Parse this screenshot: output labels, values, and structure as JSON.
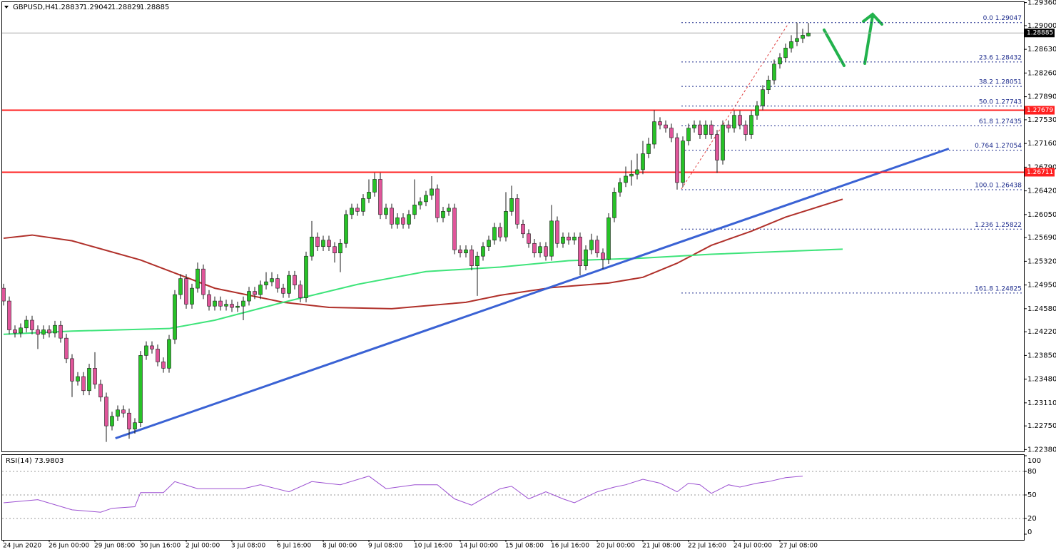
{
  "header": {
    "symbol": "GBPUSD,H4",
    "open": 1.28837,
    "high": 1.29042,
    "low": 1.28829,
    "close": 1.28885
  },
  "chart_data": [
    {
      "type": "candlestick",
      "categories": [
        "24 Jun 2020",
        null,
        null,
        null,
        null,
        null,
        null,
        null,
        "26 Jun 00:00",
        null,
        null,
        null,
        null,
        null,
        null,
        null,
        "29 Jun 08:00",
        null,
        null,
        null,
        null,
        null,
        null,
        null,
        "30 Jun 16:00",
        null,
        null,
        null,
        null,
        null,
        null,
        null,
        "2 Jul 00:00",
        null,
        null,
        null,
        null,
        null,
        null,
        null,
        "3 Jul 08:00",
        null,
        null,
        null,
        null,
        null,
        null,
        null,
        "6 Jul 16:00",
        null,
        null,
        null,
        null,
        null,
        null,
        null,
        "8 Jul 00:00",
        null,
        null,
        null,
        null,
        null,
        null,
        null,
        "9 Jul 08:00",
        null,
        null,
        null,
        null,
        null,
        null,
        null,
        "10 Jul 16:00",
        null,
        null,
        null,
        null,
        null,
        null,
        null,
        "14 Jul 00:00",
        null,
        null,
        null,
        null,
        null,
        null,
        null,
        "15 Jul 08:00",
        null,
        null,
        null,
        null,
        null,
        null,
        null,
        "16 Jul 16:00",
        null,
        null,
        null,
        null,
        null,
        null,
        null,
        "20 Jul 00:00",
        null,
        null,
        null,
        null,
        null,
        null,
        null,
        "21 Jul 08:00",
        null,
        null,
        null,
        null,
        null,
        null,
        null,
        "22 Jul 16:00",
        null,
        null,
        null,
        null,
        null,
        null,
        null,
        "24 Jul 00:00",
        null,
        null,
        null,
        null,
        null,
        null,
        null,
        "27 Jul 08:00",
        null,
        null,
        null,
        null,
        null
      ],
      "open": [
        1.249,
        1.247,
        1.2425,
        1.242,
        1.2428,
        1.244,
        1.2425,
        1.2418,
        1.2425,
        1.242,
        1.2432,
        1.2412,
        1.238,
        1.2345,
        1.2352,
        1.233,
        1.2365,
        1.234,
        1.232,
        1.2275,
        1.229,
        1.23,
        1.2295,
        1.227,
        1.228,
        1.2385,
        1.24,
        1.2395,
        1.2375,
        1.2365,
        1.241,
        1.248,
        1.2505,
        1.2465,
        1.249,
        1.252,
        1.248,
        1.2462,
        1.247,
        1.2462,
        1.2465,
        1.246,
        1.2462,
        1.247,
        1.2485,
        1.248,
        1.2495,
        1.25,
        1.2505,
        1.249,
        1.2482,
        1.251,
        1.2495,
        1.2475,
        1.254,
        1.257,
        1.2555,
        1.2565,
        1.2555,
        1.2545,
        1.256,
        1.2605,
        1.2615,
        1.261,
        1.263,
        1.264,
        1.266,
        1.2605,
        1.2615,
        1.259,
        1.26,
        1.259,
        1.2605,
        1.262,
        1.2625,
        1.2635,
        1.2645,
        1.26,
        1.261,
        1.2615,
        1.255,
        1.2545,
        1.255,
        1.2525,
        1.254,
        1.2555,
        1.2565,
        1.2585,
        1.257,
        1.261,
        1.263,
        1.259,
        1.2575,
        1.256,
        1.2545,
        1.2555,
        1.254,
        1.2595,
        1.256,
        1.257,
        1.2565,
        1.257,
        1.2525,
        1.255,
        1.2565,
        1.2545,
        1.2535,
        1.26,
        1.264,
        1.2655,
        1.2665,
        1.2668,
        1.2675,
        1.27,
        1.2715,
        1.275,
        1.2745,
        1.274,
        1.2725,
        1.2655,
        1.272,
        1.274,
        1.2745,
        1.273,
        1.2745,
        1.273,
        1.269,
        1.2745,
        1.274,
        1.276,
        1.2745,
        1.273,
        1.276,
        1.2775,
        1.28,
        1.2815,
        1.284,
        1.285,
        1.2865,
        1.2875,
        1.288,
        1.28837
      ],
      "high": [
        1.2497,
        1.2477,
        1.2432,
        1.2435,
        1.2447,
        1.2447,
        1.2432,
        1.2432,
        1.2432,
        1.2439,
        1.2439,
        1.2419,
        1.2387,
        1.2359,
        1.2359,
        1.2372,
        1.239,
        1.2347,
        1.2327,
        1.2297,
        1.2307,
        1.2307,
        1.2302,
        1.2287,
        1.2392,
        1.2407,
        1.2407,
        1.2402,
        1.2382,
        1.2417,
        1.2487,
        1.2512,
        1.2512,
        1.2497,
        1.253,
        1.2527,
        1.2487,
        1.2477,
        1.2477,
        1.2472,
        1.2472,
        1.2469,
        1.2477,
        1.2492,
        1.2492,
        1.2502,
        1.2515,
        1.2515,
        1.2512,
        1.2497,
        1.2517,
        1.2517,
        1.2502,
        1.2547,
        1.2595,
        1.2577,
        1.2572,
        1.2572,
        1.2562,
        1.2567,
        1.2612,
        1.2622,
        1.2622,
        1.2637,
        1.266,
        1.267,
        1.267,
        1.2622,
        1.2622,
        1.2607,
        1.2607,
        1.2612,
        1.266,
        1.2632,
        1.2642,
        1.2665,
        1.2652,
        1.2617,
        1.2622,
        1.2622,
        1.2557,
        1.2557,
        1.2557,
        1.2547,
        1.2562,
        1.2572,
        1.2592,
        1.2592,
        1.264,
        1.265,
        1.2637,
        1.2597,
        1.2582,
        1.2567,
        1.2562,
        1.2562,
        1.262,
        1.2602,
        1.2577,
        1.2577,
        1.2577,
        1.2577,
        1.2557,
        1.2575,
        1.2572,
        1.2552,
        1.2607,
        1.2647,
        1.2662,
        1.268,
        1.269,
        1.27,
        1.272,
        1.2725,
        1.2768,
        1.2757,
        1.2752,
        1.2747,
        1.2732,
        1.2727,
        1.2747,
        1.2752,
        1.2752,
        1.2752,
        1.2752,
        1.2737,
        1.2752,
        1.2752,
        1.2767,
        1.2767,
        1.2752,
        1.2767,
        1.2782,
        1.2807,
        1.2822,
        1.2847,
        1.2857,
        1.2872,
        1.2885,
        1.29047,
        1.2895,
        1.29042
      ],
      "low": [
        1.2463,
        1.2418,
        1.2413,
        1.2413,
        1.2421,
        1.2418,
        1.2395,
        1.2411,
        1.2413,
        1.2413,
        1.2405,
        1.2373,
        1.232,
        1.2338,
        1.2323,
        1.2323,
        1.2333,
        1.2313,
        1.225,
        1.2268,
        1.2283,
        1.2288,
        1.2255,
        1.2263,
        1.2273,
        1.2378,
        1.2388,
        1.2368,
        1.2358,
        1.2358,
        1.2403,
        1.2473,
        1.2458,
        1.2458,
        1.2483,
        1.2473,
        1.2455,
        1.2455,
        1.2455,
        1.2455,
        1.2453,
        1.2453,
        1.244,
        1.2463,
        1.2473,
        1.2473,
        1.2488,
        1.2493,
        1.2483,
        1.2475,
        1.2475,
        1.2488,
        1.2468,
        1.2468,
        1.2533,
        1.2548,
        1.2548,
        1.2548,
        1.253,
        1.2515,
        1.2553,
        1.2598,
        1.2603,
        1.2603,
        1.2623,
        1.2633,
        1.2598,
        1.2598,
        1.2583,
        1.2583,
        1.2583,
        1.2583,
        1.2598,
        1.2613,
        1.2618,
        1.2628,
        1.2593,
        1.2593,
        1.2603,
        1.2543,
        1.2538,
        1.2538,
        1.2518,
        1.2478,
        1.2533,
        1.2548,
        1.2558,
        1.2563,
        1.2563,
        1.2603,
        1.2583,
        1.2568,
        1.2553,
        1.2538,
        1.2538,
        1.2533,
        1.2533,
        1.2553,
        1.2553,
        1.2558,
        1.2558,
        1.251,
        1.2518,
        1.2543,
        1.2538,
        1.252,
        1.2528,
        1.2593,
        1.2633,
        1.2648,
        1.265,
        1.266,
        1.2668,
        1.2693,
        1.2708,
        1.2738,
        1.2733,
        1.2718,
        1.2644,
        1.2648,
        1.2713,
        1.2733,
        1.2723,
        1.2723,
        1.2723,
        1.267,
        1.2683,
        1.2733,
        1.2733,
        1.2738,
        1.272,
        1.2723,
        1.2753,
        1.2768,
        1.2793,
        1.2808,
        1.2833,
        1.2843,
        1.2858,
        1.2868,
        1.2873,
        1.28829
      ],
      "close": [
        1.247,
        1.2425,
        1.242,
        1.2428,
        1.244,
        1.2425,
        1.2418,
        1.2425,
        1.242,
        1.2432,
        1.2412,
        1.238,
        1.2345,
        1.2352,
        1.233,
        1.2365,
        1.234,
        1.232,
        1.2275,
        1.229,
        1.23,
        1.2295,
        1.227,
        1.228,
        1.2385,
        1.24,
        1.2395,
        1.2375,
        1.2365,
        1.241,
        1.248,
        1.2505,
        1.2465,
        1.249,
        1.252,
        1.248,
        1.2462,
        1.247,
        1.2462,
        1.2465,
        1.246,
        1.2462,
        1.247,
        1.2485,
        1.248,
        1.2495,
        1.25,
        1.2505,
        1.249,
        1.2482,
        1.251,
        1.2495,
        1.2475,
        1.254,
        1.257,
        1.2555,
        1.2565,
        1.2555,
        1.2545,
        1.256,
        1.2605,
        1.2615,
        1.261,
        1.263,
        1.264,
        1.266,
        1.2605,
        1.2615,
        1.259,
        1.26,
        1.259,
        1.2605,
        1.262,
        1.2625,
        1.2635,
        1.2645,
        1.26,
        1.261,
        1.2615,
        1.255,
        1.2545,
        1.255,
        1.2525,
        1.254,
        1.2555,
        1.2565,
        1.2585,
        1.257,
        1.261,
        1.263,
        1.259,
        1.2575,
        1.256,
        1.2545,
        1.2555,
        1.254,
        1.2595,
        1.256,
        1.257,
        1.2565,
        1.257,
        1.2525,
        1.255,
        1.2565,
        1.2545,
        1.2535,
        1.26,
        1.264,
        1.2655,
        1.2665,
        1.2668,
        1.2675,
        1.27,
        1.2715,
        1.275,
        1.2745,
        1.274,
        1.2725,
        1.2655,
        1.272,
        1.274,
        1.2745,
        1.273,
        1.2745,
        1.273,
        1.269,
        1.2745,
        1.274,
        1.276,
        1.2745,
        1.273,
        1.276,
        1.2775,
        1.28,
        1.2815,
        1.284,
        1.285,
        1.2865,
        1.2875,
        1.288,
        1.2885,
        1.28885
      ],
      "up_color": "#27c227",
      "down_color": "#e0559a",
      "wick_color": "#1a1a1a",
      "ylim": [
        1.2234,
        1.294
      ],
      "yticks": [
        {
          "value": 1.2936,
          "label": "1.29360"
        },
        {
          "value": 1.29,
          "label": "1.29000"
        },
        {
          "value": 1.2863,
          "label": "1.28630"
        },
        {
          "value": 1.2826,
          "label": "1.28260"
        },
        {
          "value": 1.2789,
          "label": "1.27890"
        },
        {
          "value": 1.2753,
          "label": "1.27530"
        },
        {
          "value": 1.2716,
          "label": "1.27160"
        },
        {
          "value": 1.2679,
          "label": "1.26790"
        },
        {
          "value": 1.2642,
          "label": "1.26420"
        },
        {
          "value": 1.2605,
          "label": "1.26050"
        },
        {
          "value": 1.2569,
          "label": "1.25690"
        },
        {
          "value": 1.2532,
          "label": "1.25320"
        },
        {
          "value": 1.2495,
          "label": "1.24950"
        },
        {
          "value": 1.2458,
          "label": "1.24580"
        },
        {
          "value": 1.2422,
          "label": "1.24220"
        },
        {
          "value": 1.2385,
          "label": "1.23850"
        },
        {
          "value": 1.2348,
          "label": "1.23480"
        },
        {
          "value": 1.2311,
          "label": "1.23110"
        },
        {
          "value": 1.2275,
          "label": "1.22750"
        },
        {
          "value": 1.2238,
          "label": "1.22380"
        }
      ],
      "overlays": [
        {
          "color": "#b0302a",
          "x": [
            0,
            5,
            12,
            24,
            37,
            49,
            57,
            68,
            81,
            87,
            96,
            106,
            112,
            118,
            124,
            131,
            137,
            147
          ],
          "values": [
            1.2568,
            1.2573,
            1.2564,
            1.2534,
            1.249,
            1.2468,
            1.246,
            1.2458,
            1.2468,
            1.2479,
            1.2491,
            1.2498,
            1.2507,
            1.2529,
            1.2557,
            1.2579,
            1.2601,
            1.2629
          ]
        },
        {
          "color": "#3ee47a",
          "x": [
            0,
            12,
            29,
            37,
            49,
            62,
            74,
            87,
            99,
            112,
            124,
            147
          ],
          "values": [
            1.2418,
            1.2423,
            1.2427,
            1.244,
            1.2468,
            1.2496,
            1.2516,
            1.2523,
            1.2533,
            1.2537,
            1.2543,
            1.2551
          ]
        }
      ],
      "trendline": {
        "color": "#3a62d4",
        "x": [
          19.6,
          165.6
        ],
        "values": [
          1.22556,
          1.27078
        ]
      },
      "hlines": [
        1.27679,
        1.26711
      ],
      "hline_color": "#ff2020",
      "fib": [
        {
          "value": 1.29047,
          "label": "0.0 1.29047"
        },
        {
          "value": 1.28432,
          "label": "23.6 1.28432"
        },
        {
          "value": 1.28051,
          "label": "38.2 1.28051"
        },
        {
          "value": 1.27743,
          "label": "50.0 1.27743"
        },
        {
          "value": 1.27435,
          "label": "61.8 1.27435"
        },
        {
          "value": 1.27054,
          "label": "0.764 1.27054"
        },
        {
          "value": 1.26438,
          "label": "100.0 1.26438"
        },
        {
          "value": 1.25822,
          "label": "1.236 1.25822"
        },
        {
          "value": 1.24825,
          "label": "161.8 1.24825"
        }
      ],
      "fib_color": "#1b2a8c"
    },
    {
      "type": "line",
      "title": "RSI(14) 73.9803",
      "color": "#9b4fd1",
      "x": [
        0,
        6,
        12,
        17,
        19,
        23,
        24,
        28,
        30,
        34,
        37,
        42,
        45,
        50,
        54,
        59,
        64,
        67,
        72,
        76,
        79,
        82,
        87,
        89,
        92,
        95,
        98,
        100,
        104,
        107,
        109,
        112,
        115,
        118,
        120,
        122,
        124,
        127,
        129,
        132,
        134,
        137,
        140
      ],
      "values": [
        40,
        44,
        31,
        28,
        33,
        35,
        53,
        53,
        67,
        58,
        58,
        58,
        63,
        54,
        67,
        63,
        74,
        58,
        63,
        63,
        45,
        37,
        58,
        61,
        45,
        54,
        45,
        40,
        54,
        60,
        63,
        70,
        65,
        54,
        65,
        63,
        52,
        63,
        60,
        65,
        67,
        72,
        74
      ],
      "ylim": [
        0,
        100
      ],
      "yticks": [
        100,
        80,
        50,
        20,
        0
      ],
      "levels": [
        80,
        50,
        20
      ]
    }
  ]
}
